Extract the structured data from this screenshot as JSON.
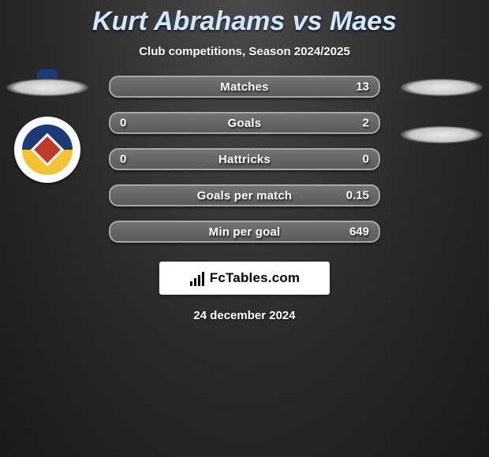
{
  "header": {
    "title": "Kurt Abrahams vs Maes",
    "title_color": "#cfe8ff",
    "title_fontsize": 34,
    "subtitle": "Club competitions, Season 2024/2025",
    "subtitle_color": "#ffffff",
    "subtitle_fontsize": 15
  },
  "background": {
    "gradient_inner": "#4a4a4a",
    "gradient_mid": "#2a2a2a",
    "gradient_outer": "#1a1a1a"
  },
  "players": {
    "left_placeholder_color": "#e8e8e8",
    "right_placeholder_color": "#e8e8e8"
  },
  "club_badge": {
    "bg": "#ffffff",
    "top_color": "#1b3a7a",
    "bottom_color": "#f4c430",
    "center_color": "#c0392b",
    "crown_color": "#1b3a7a"
  },
  "stats": {
    "row_bg_top": "#737373",
    "row_bg_bottom": "#5a5a5a",
    "row_border": "#a8a8a8",
    "text_color": "#ffffff",
    "label_fontsize": 15,
    "value_fontsize": 15,
    "rows": [
      {
        "label": "Matches",
        "left": "",
        "right": "13"
      },
      {
        "label": "Goals",
        "left": "0",
        "right": "2"
      },
      {
        "label": "Hattricks",
        "left": "0",
        "right": "0"
      },
      {
        "label": "Goals per match",
        "left": "",
        "right": "0.15"
      },
      {
        "label": "Min per goal",
        "left": "",
        "right": "649"
      }
    ]
  },
  "brand": {
    "text": "FcTables.com",
    "text_color": "#000000",
    "box_bg": "#ffffff",
    "icon_bars": [
      6,
      10,
      14,
      18
    ]
  },
  "footer": {
    "date": "24 december 2024",
    "date_color": "#ffffff",
    "date_fontsize": 15
  }
}
